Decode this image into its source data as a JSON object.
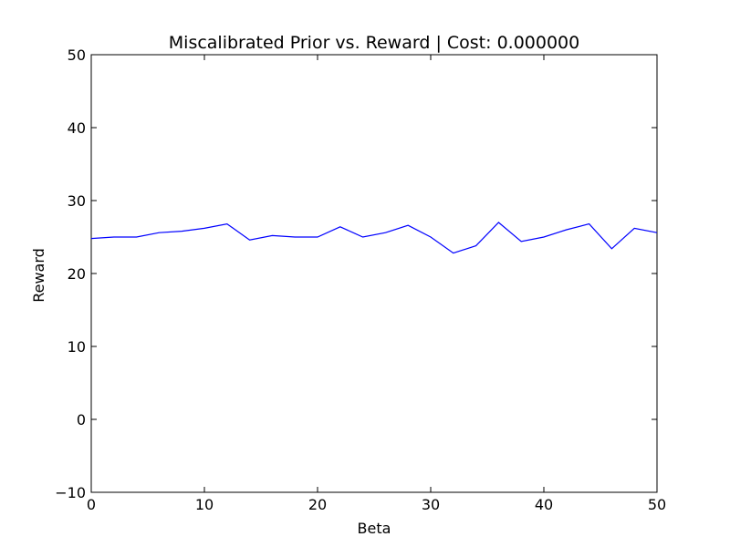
{
  "chart_data": {
    "type": "line",
    "title": "Miscalibrated Prior vs. Reward | Cost: 0.000000",
    "xlabel": "Beta",
    "ylabel": "Reward",
    "xlim": [
      0,
      50
    ],
    "ylim": [
      -10,
      50
    ],
    "xticks": [
      0,
      10,
      20,
      30,
      40,
      50
    ],
    "yticks": [
      -10,
      0,
      10,
      20,
      30,
      40,
      50
    ],
    "grid": false,
    "series": [
      {
        "color": "#0000ff",
        "x": [
          0,
          2,
          4,
          6,
          8,
          10,
          12,
          14,
          16,
          18,
          20,
          22,
          24,
          26,
          28,
          30,
          32,
          34,
          36,
          38,
          40,
          42,
          44,
          46,
          48,
          50
        ],
        "y": [
          24.8,
          25.0,
          25.0,
          25.6,
          25.8,
          26.2,
          26.8,
          24.6,
          25.2,
          25.0,
          25.0,
          26.4,
          25.0,
          25.6,
          26.6,
          25.0,
          22.8,
          23.8,
          27.0,
          24.4,
          25.0,
          26.0,
          26.8,
          23.4,
          26.2,
          25.6
        ]
      }
    ]
  }
}
